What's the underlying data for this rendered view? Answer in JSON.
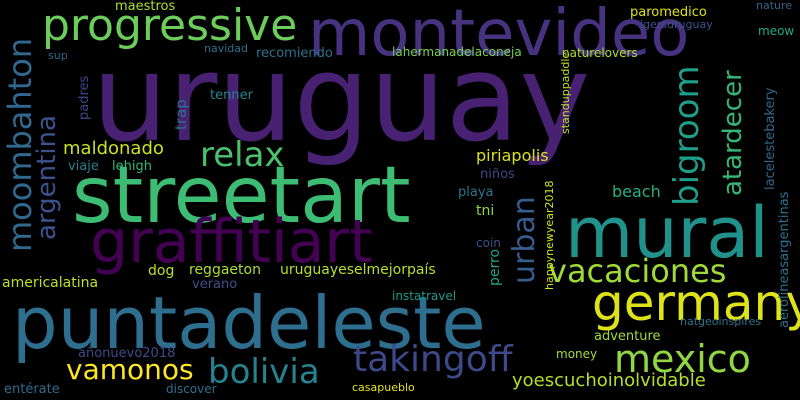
{
  "words": [
    {
      "id": "uruguay",
      "text": "uruguay",
      "color": "#482173"
    },
    {
      "id": "puntadeleste",
      "text": "puntadeleste",
      "color": "#2e6e8e"
    },
    {
      "id": "streetart",
      "text": "streetart",
      "color": "#3dbc74"
    },
    {
      "id": "montevideo",
      "text": "montevideo",
      "color": "#46327e"
    },
    {
      "id": "mural",
      "text": "mural",
      "color": "#21918c"
    },
    {
      "id": "graffitiart",
      "text": "graffitiart",
      "color": "#440154"
    },
    {
      "id": "germany",
      "text": "germany",
      "color": "#dde318"
    },
    {
      "id": "progressive",
      "text": "progressive",
      "color": "#6ccd5a"
    },
    {
      "id": "vacaciones",
      "text": "vacaciones",
      "color": "#a0da39"
    },
    {
      "id": "mexico",
      "text": "mexico",
      "color": "#90d743"
    },
    {
      "id": "takingoff",
      "text": "takingoff",
      "color": "#3e4989"
    },
    {
      "id": "bolivia",
      "text": "bolivia",
      "color": "#26828e"
    },
    {
      "id": "vamonos",
      "text": "vamonos",
      "color": "#fde725"
    },
    {
      "id": "relax",
      "text": "relax",
      "color": "#4ac16d"
    },
    {
      "id": "yoescuchoinolvidable",
      "text": "yoescuchoinolvidable",
      "color": "#b5de2b"
    },
    {
      "id": "moombahton",
      "text": "moombahton",
      "color": "#31688e"
    },
    {
      "id": "argentina",
      "text": "argentina",
      "color": "#3b528b"
    },
    {
      "id": "urban",
      "text": "urban",
      "color": "#365d8d"
    },
    {
      "id": "bigroom",
      "text": "bigroom",
      "color": "#1f9e89"
    },
    {
      "id": "atardecer",
      "text": "atardecer",
      "color": "#35b779"
    },
    {
      "id": "maldonado",
      "text": "maldonado",
      "color": "#c8e020"
    },
    {
      "id": "piriapolis",
      "text": "piriapolis",
      "color": "#d8e219"
    },
    {
      "id": "beach",
      "text": "beach",
      "color": "#29af7f"
    },
    {
      "id": "americalatina",
      "text": "americalatina",
      "color": "#bddf26"
    },
    {
      "id": "reggaeton",
      "text": "reggaeton",
      "color": "#addc30"
    },
    {
      "id": "uruguayeselmejorpais",
      "text": "uruguayeselmejorpaís",
      "color": "#b8de29"
    },
    {
      "id": "dog",
      "text": "dog",
      "color": "#c2df23"
    },
    {
      "id": "verano",
      "text": "verano",
      "color": "#3b518b"
    },
    {
      "id": "paromedico",
      "text": "paromedico",
      "color": "#dae319"
    },
    {
      "id": "maestros",
      "text": "maestros",
      "color": "#b0dd2f"
    },
    {
      "id": "tenner",
      "text": "tenner",
      "color": "#25858e"
    },
    {
      "id": "trap",
      "text": "trap",
      "color": "#2c718e"
    },
    {
      "id": "padres",
      "text": "padres",
      "color": "#404588"
    },
    {
      "id": "viaje",
      "text": "viaje",
      "color": "#287d8e"
    },
    {
      "id": "lehigh",
      "text": "lehigh",
      "color": "#31b57b"
    },
    {
      "id": "tni",
      "text": "tni",
      "color": "#8bd646"
    },
    {
      "id": "playa",
      "text": "playa",
      "color": "#2a768e"
    },
    {
      "id": "ninos",
      "text": "niños",
      "color": "#3f4788"
    },
    {
      "id": "perro",
      "text": "perro",
      "color": "#1fa287"
    },
    {
      "id": "coin",
      "text": "coin",
      "color": "#3c4f8a"
    },
    {
      "id": "instatravel",
      "text": "instatravel",
      "color": "#1f988b"
    },
    {
      "id": "adventure",
      "text": "adventure",
      "color": "#a2da37"
    },
    {
      "id": "natgeoinspires",
      "text": "natgeoinspires",
      "color": "#2c728e"
    },
    {
      "id": "anonuevo2018",
      "text": "añonuevo2018",
      "color": "#3e4a89"
    },
    {
      "id": "money",
      "text": "money",
      "color": "#a5db36"
    },
    {
      "id": "casapueblo",
      "text": "casapueblo",
      "color": "#e5e419"
    },
    {
      "id": "discover",
      "text": "discover",
      "color": "#2d708e"
    },
    {
      "id": "enterate",
      "text": "entérate",
      "color": "#2f6c8e"
    },
    {
      "id": "navidad",
      "text": "navidad",
      "color": "#2e6f8e"
    },
    {
      "id": "recomiendo",
      "text": "recomiendo",
      "color": "#2c718e"
    },
    {
      "id": "sup",
      "text": "sup",
      "color": "#31678e"
    },
    {
      "id": "lahermanadelaconeja",
      "text": "lahermanadelaconeja",
      "color": "#77d153"
    },
    {
      "id": "naturelovers",
      "text": "naturelovers",
      "color": "#addc30"
    },
    {
      "id": "igersuruguay",
      "text": "igersuruguay",
      "color": "#3b528b"
    },
    {
      "id": "nature",
      "text": "nature",
      "color": "#33638d"
    },
    {
      "id": "meow",
      "text": "meow",
      "color": "#22a884"
    },
    {
      "id": "standuppaddle",
      "text": "standuppaddle",
      "color": "#c0df25"
    },
    {
      "id": "lacelestebakery",
      "text": "lacelestebakery",
      "color": "#31678e"
    },
    {
      "id": "aerolineasargentinas",
      "text": "aerolineasargentinas",
      "color": "#2d718e"
    },
    {
      "id": "happynewyear2018",
      "text": "happynewyear2018",
      "color": "#d2e21b"
    }
  ]
}
